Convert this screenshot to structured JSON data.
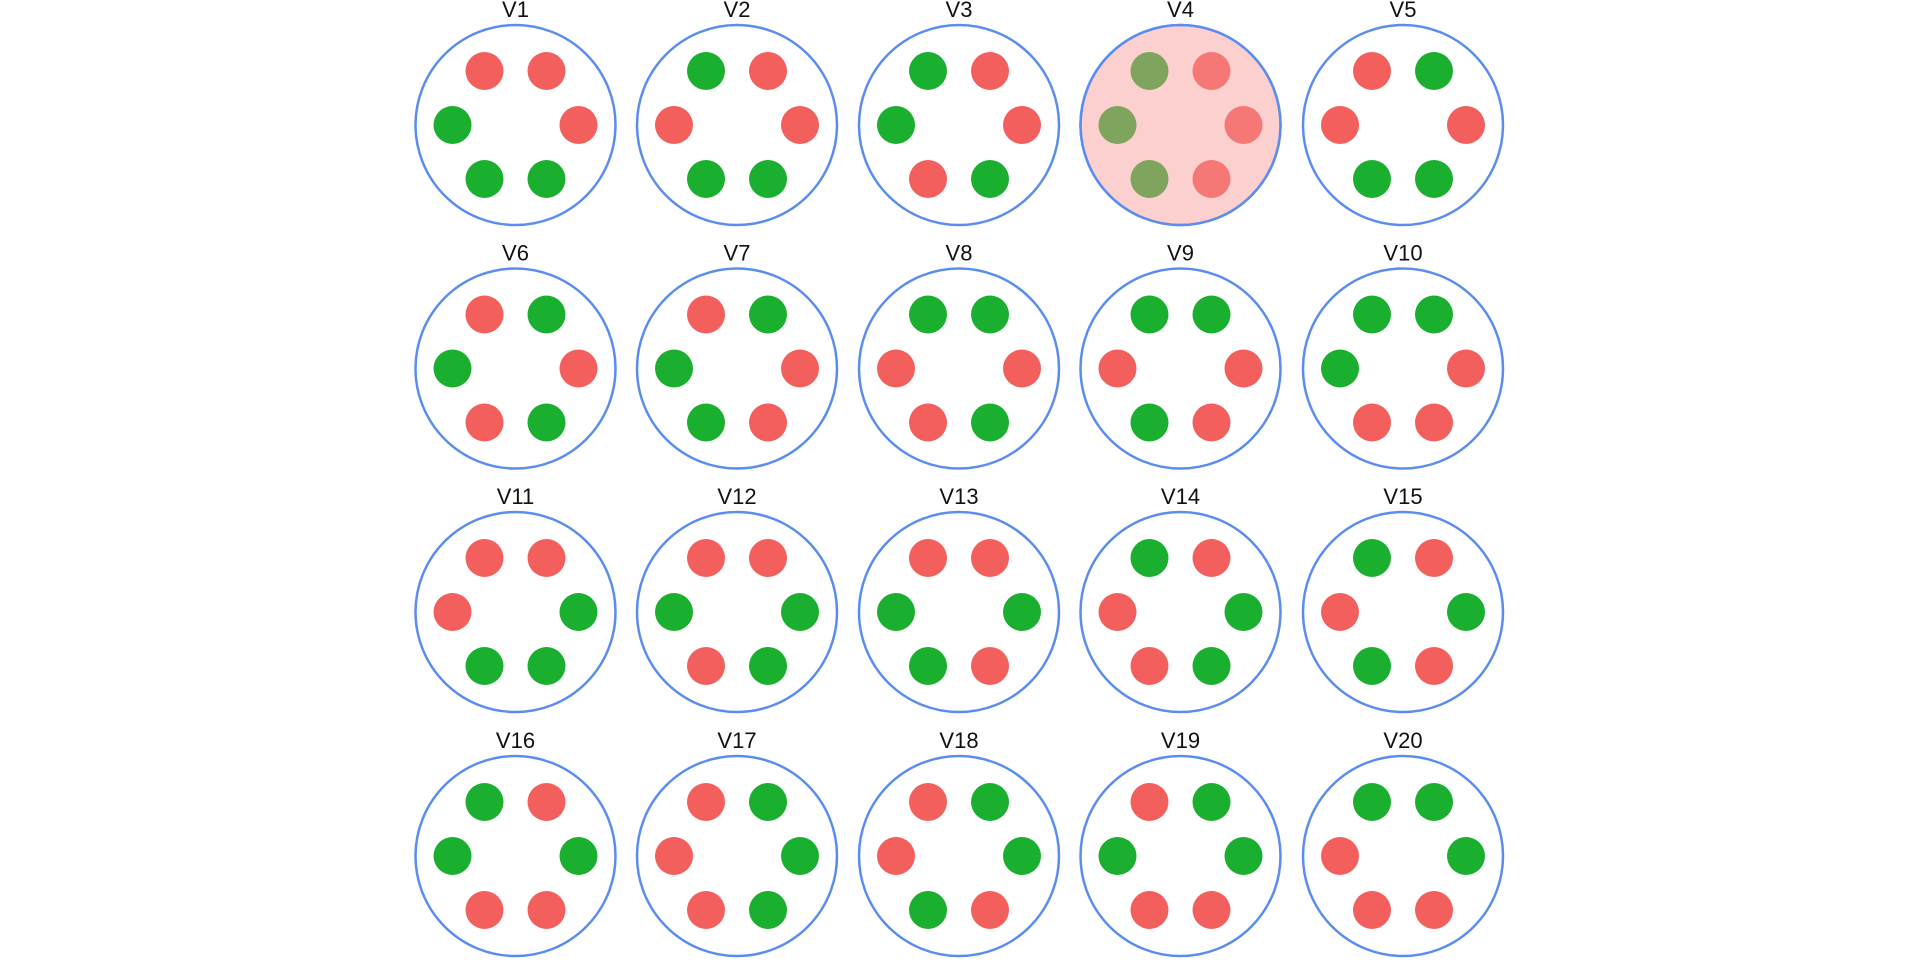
{
  "tiles": [
    {
      "label": "V1",
      "dots": [
        "#f25f5c",
        "#f25f5c",
        "#1aaf2e",
        "#f25f5c",
        "#1aaf2e",
        "#1aaf2e"
      ]
    },
    {
      "label": "V2",
      "dots": [
        "#1aaf2e",
        "#f25f5c",
        "#f25f5c",
        "#f25f5c",
        "#1aaf2e",
        "#1aaf2e"
      ]
    },
    {
      "label": "V3",
      "dots": [
        "#1aaf2e",
        "#f25f5c",
        "#1aaf2e",
        "#f25f5c",
        "#f25f5c",
        "#1aaf2e"
      ]
    },
    {
      "label": "V4",
      "dots": [
        "#1aaf2e",
        "#f25f5c",
        "#1aaf2e",
        "#f25f5c",
        "#1aaf2e",
        "#f25f5c"
      ],
      "selected": true
    },
    {
      "label": "V5",
      "dots": [
        "#f25f5c",
        "#1aaf2e",
        "#f25f5c",
        "#f25f5c",
        "#1aaf2e",
        "#1aaf2e"
      ]
    },
    {
      "label": "V6",
      "dots": [
        "#f25f5c",
        "#1aaf2e",
        "#1aaf2e",
        "#f25f5c",
        "#f25f5c",
        "#1aaf2e"
      ]
    },
    {
      "label": "V7",
      "dots": [
        "#f25f5c",
        "#1aaf2e",
        "#1aaf2e",
        "#f25f5c",
        "#1aaf2e",
        "#f25f5c"
      ]
    },
    {
      "label": "V8",
      "dots": [
        "#1aaf2e",
        "#1aaf2e",
        "#f25f5c",
        "#f25f5c",
        "#f25f5c",
        "#1aaf2e"
      ]
    },
    {
      "label": "V9",
      "dots": [
        "#1aaf2e",
        "#1aaf2e",
        "#f25f5c",
        "#f25f5c",
        "#1aaf2e",
        "#f25f5c"
      ]
    },
    {
      "label": "V10",
      "dots": [
        "#1aaf2e",
        "#1aaf2e",
        "#1aaf2e",
        "#f25f5c",
        "#f25f5c",
        "#f25f5c"
      ]
    },
    {
      "label": "V11",
      "dots": [
        "#f25f5c",
        "#f25f5c",
        "#f25f5c",
        "#1aaf2e",
        "#1aaf2e",
        "#1aaf2e"
      ]
    },
    {
      "label": "V12",
      "dots": [
        "#f25f5c",
        "#f25f5c",
        "#1aaf2e",
        "#1aaf2e",
        "#f25f5c",
        "#1aaf2e"
      ]
    },
    {
      "label": "V13",
      "dots": [
        "#f25f5c",
        "#f25f5c",
        "#1aaf2e",
        "#1aaf2e",
        "#1aaf2e",
        "#f25f5c"
      ]
    },
    {
      "label": "V14",
      "dots": [
        "#1aaf2e",
        "#f25f5c",
        "#f25f5c",
        "#1aaf2e",
        "#f25f5c",
        "#1aaf2e"
      ]
    },
    {
      "label": "V15",
      "dots": [
        "#1aaf2e",
        "#f25f5c",
        "#f25f5c",
        "#1aaf2e",
        "#1aaf2e",
        "#f25f5c"
      ]
    },
    {
      "label": "V16",
      "dots": [
        "#1aaf2e",
        "#f25f5c",
        "#1aaf2e",
        "#1aaf2e",
        "#f25f5c",
        "#f25f5c"
      ]
    },
    {
      "label": "V17",
      "dots": [
        "#f25f5c",
        "#1aaf2e",
        "#f25f5c",
        "#1aaf2e",
        "#f25f5c",
        "#1aaf2e"
      ]
    },
    {
      "label": "V18",
      "dots": [
        "#f25f5c",
        "#1aaf2e",
        "#f25f5c",
        "#1aaf2e",
        "#1aaf2e",
        "#f25f5c"
      ]
    },
    {
      "label": "V19",
      "dots": [
        "#f25f5c",
        "#1aaf2e",
        "#1aaf2e",
        "#1aaf2e",
        "#f25f5c",
        "#f25f5c"
      ]
    },
    {
      "label": "V20",
      "dots": [
        "#1aaf2e",
        "#1aaf2e",
        "#f25f5c",
        "#1aaf2e",
        "#f25f5c",
        "#f25f5c"
      ]
    }
  ]
}
